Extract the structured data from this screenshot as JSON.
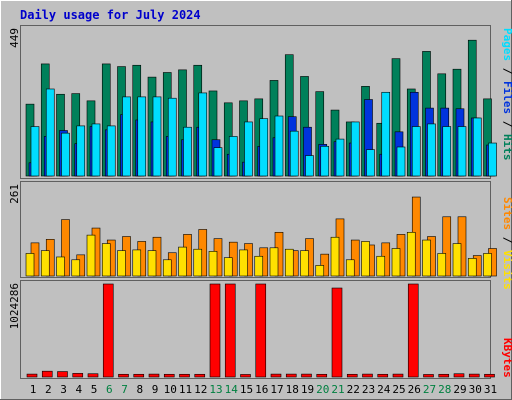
{
  "colors": {
    "background": "#c0c0c0",
    "title": "#0000cc",
    "hits": "#00805a",
    "files": "#0033dd",
    "pages": "#00ddff",
    "visits": "#ffe000",
    "sites": "#ff8800",
    "kbytes": "#ff0000",
    "day_weekday": "#000000",
    "day_weekend": "#008040"
  },
  "chart_data": [
    {
      "type": "bar",
      "title": "Daily usage for July 2024",
      "ymax_label": "449",
      "series_names": [
        "Pages",
        "Files",
        "Hits"
      ],
      "categories": [
        "1",
        "2",
        "3",
        "4",
        "5",
        "6",
        "7",
        "8",
        "9",
        "10",
        "11",
        "12",
        "13",
        "14",
        "15",
        "16",
        "17",
        "18",
        "19",
        "20",
        "21",
        "22",
        "23",
        "24",
        "25",
        "26",
        "27",
        "28",
        "29",
        "30",
        "31"
      ],
      "weekend_days": [
        "6",
        "7",
        "13",
        "14",
        "20",
        "21",
        "27",
        "28"
      ],
      "ylim": [
        0,
        449
      ],
      "series": [
        {
          "name": "Hits",
          "values": [
            218,
            340,
            248,
            250,
            228,
            340,
            332,
            336,
            300,
            314,
            322,
            336,
            258,
            222,
            228,
            234,
            290,
            368,
            302,
            256,
            200,
            164,
            272,
            160,
            356,
            264,
            378,
            310,
            324,
            412,
            234
          ]
        },
        {
          "name": "Files",
          "values": [
            40,
            120,
            138,
            98,
            150,
            140,
            186,
            170,
            164,
            120,
            110,
            148,
            110,
            66,
            42,
            90,
            116,
            180,
            148,
            96,
            104,
            100,
            232,
            66,
            134,
            254,
            206,
            206,
            204,
            176,
            94
          ]
        },
        {
          "name": "Pages",
          "values": [
            150,
            264,
            130,
            152,
            158,
            152,
            240,
            240,
            240,
            236,
            148,
            252,
            86,
            120,
            164,
            174,
            182,
            136,
            62,
            90,
            112,
            164,
            80,
            254,
            88,
            150,
            158,
            150,
            150,
            176,
            100
          ]
        }
      ]
    },
    {
      "type": "bar",
      "ymax_label": "261",
      "series_names": [
        "Sites",
        "Visits"
      ],
      "categories": [
        "1",
        "2",
        "3",
        "4",
        "5",
        "6",
        "7",
        "8",
        "9",
        "10",
        "11",
        "12",
        "13",
        "14",
        "15",
        "16",
        "17",
        "18",
        "19",
        "20",
        "21",
        "22",
        "23",
        "24",
        "25",
        "26",
        "27",
        "28",
        "29",
        "30",
        "31"
      ],
      "ylim": [
        0,
        261
      ],
      "series": [
        {
          "name": "Sites",
          "values": [
            94,
            104,
            160,
            60,
            136,
            102,
            112,
            98,
            110,
            66,
            118,
            132,
            106,
            96,
            92,
            80,
            124,
            72,
            106,
            62,
            162,
            102,
            88,
            94,
            118,
            224,
            112,
            168,
            168,
            58,
            78
          ]
        },
        {
          "name": "Visits",
          "values": [
            64,
            72,
            54,
            46,
            116,
            92,
            72,
            74,
            72,
            46,
            82,
            76,
            70,
            52,
            74,
            56,
            80,
            76,
            72,
            30,
            110,
            46,
            98,
            56,
            78,
            124,
            102,
            64,
            92,
            50,
            64
          ]
        }
      ]
    },
    {
      "type": "bar",
      "ymax_label": "1024286",
      "series_names": [
        "KBytes"
      ],
      "categories": [
        "1",
        "2",
        "3",
        "4",
        "5",
        "6",
        "7",
        "8",
        "9",
        "10",
        "11",
        "12",
        "13",
        "14",
        "15",
        "16",
        "17",
        "18",
        "19",
        "20",
        "21",
        "22",
        "23",
        "24",
        "25",
        "26",
        "27",
        "28",
        "29",
        "30",
        "31"
      ],
      "ylim": [
        0,
        1024286
      ],
      "series": [
        {
          "name": "KBytes",
          "values": [
            32000,
            64000,
            60000,
            40000,
            36000,
            1024286,
            30000,
            30000,
            32000,
            30000,
            30000,
            30000,
            1024286,
            1024286,
            28000,
            1024286,
            32000,
            32000,
            32000,
            30000,
            980000,
            30000,
            32000,
            30000,
            32000,
            1024286,
            28000,
            30000,
            36000,
            32000,
            30000
          ]
        }
      ]
    }
  ]
}
